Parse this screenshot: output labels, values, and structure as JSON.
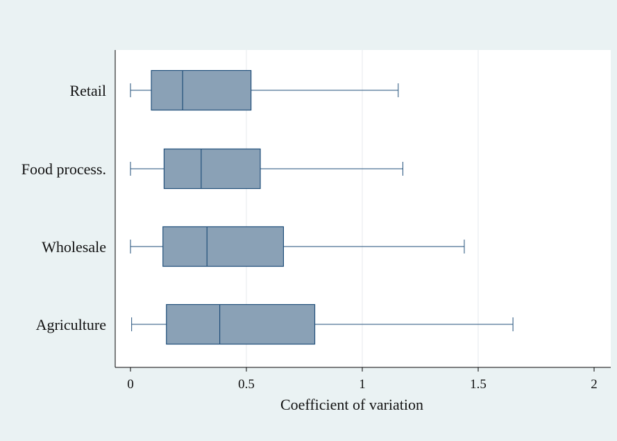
{
  "chart_data": {
    "type": "boxplot",
    "orientation": "horizontal",
    "title": "",
    "xlabel": "Coefficient of variation",
    "ylabel": "",
    "xlim": [
      0,
      2
    ],
    "xticks": [
      0,
      0.5,
      1,
      1.5,
      2
    ],
    "xtick_labels": [
      "0",
      "0.5",
      "1",
      "1.5",
      "2"
    ],
    "grid": true,
    "colors": {
      "background": "#eaf2f3",
      "plot_area": "#ffffff",
      "box_fill": "#8aa1b6",
      "box_stroke": "#1f4e79",
      "grid": "#e6e8ec",
      "axis": "#000000"
    },
    "categories": [
      "Retail",
      "Food process.",
      "Wholesale",
      "Agriculture"
    ],
    "boxes": [
      {
        "category": "Retail",
        "min": 0.0,
        "q1": 0.09,
        "median": 0.225,
        "q3": 0.52,
        "max": 1.155
      },
      {
        "category": "Food process.",
        "min": 0.0,
        "q1": 0.145,
        "median": 0.305,
        "q3": 0.56,
        "max": 1.175
      },
      {
        "category": "Wholesale",
        "min": 0.0,
        "q1": 0.14,
        "median": 0.33,
        "q3": 0.66,
        "max": 1.44
      },
      {
        "category": "Agriculture",
        "min": 0.005,
        "q1": 0.155,
        "median": 0.385,
        "q3": 0.795,
        "max": 1.65
      }
    ]
  }
}
